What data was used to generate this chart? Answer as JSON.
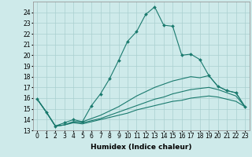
{
  "xlabel": "Humidex (Indice chaleur)",
  "background_color": "#ceeaea",
  "grid_color": "#aacfcf",
  "line_color": "#1a7a6e",
  "xlim": [
    -0.5,
    23.5
  ],
  "ylim": [
    13,
    25
  ],
  "yticks": [
    13,
    14,
    15,
    16,
    17,
    18,
    19,
    20,
    21,
    22,
    23,
    24
  ],
  "xticks": [
    0,
    1,
    2,
    3,
    4,
    5,
    6,
    7,
    8,
    9,
    10,
    11,
    12,
    13,
    14,
    15,
    16,
    17,
    18,
    19,
    20,
    21,
    22,
    23
  ],
  "line1_x": [
    0,
    1,
    2,
    3,
    4,
    5,
    6,
    7,
    8,
    9,
    10,
    11,
    12,
    13,
    14,
    15,
    16,
    17,
    18,
    19,
    20,
    21,
    22,
    23
  ],
  "line1_y": [
    15.9,
    14.7,
    13.4,
    13.7,
    14.0,
    13.8,
    15.3,
    16.4,
    17.8,
    19.5,
    21.3,
    22.2,
    23.8,
    24.5,
    22.8,
    22.7,
    20.0,
    20.1,
    19.6,
    18.1,
    17.1,
    16.7,
    16.5,
    15.2
  ],
  "line2_x": [
    0,
    1,
    2,
    3,
    4,
    5,
    6,
    7,
    8,
    9,
    10,
    11,
    12,
    13,
    14,
    15,
    16,
    17,
    18,
    19,
    20,
    21,
    22,
    23
  ],
  "line2_y": [
    15.9,
    14.7,
    13.4,
    13.5,
    13.8,
    13.8,
    14.1,
    14.4,
    14.8,
    15.2,
    15.7,
    16.2,
    16.6,
    17.0,
    17.3,
    17.6,
    17.8,
    18.0,
    17.9,
    18.1,
    17.1,
    16.7,
    16.5,
    15.2
  ],
  "line3_x": [
    0,
    1,
    2,
    3,
    4,
    5,
    6,
    7,
    8,
    9,
    10,
    11,
    12,
    13,
    14,
    15,
    16,
    17,
    18,
    19,
    20,
    21,
    22,
    23
  ],
  "line3_y": [
    15.9,
    14.7,
    13.4,
    13.5,
    13.8,
    13.7,
    13.9,
    14.1,
    14.4,
    14.7,
    15.0,
    15.3,
    15.6,
    15.9,
    16.1,
    16.4,
    16.6,
    16.8,
    16.9,
    17.0,
    16.8,
    16.5,
    16.2,
    15.2
  ],
  "line4_x": [
    0,
    1,
    2,
    3,
    4,
    5,
    6,
    7,
    8,
    9,
    10,
    11,
    12,
    13,
    14,
    15,
    16,
    17,
    18,
    19,
    20,
    21,
    22,
    23
  ],
  "line4_y": [
    15.9,
    14.7,
    13.4,
    13.5,
    13.7,
    13.6,
    13.8,
    14.0,
    14.2,
    14.4,
    14.6,
    14.9,
    15.1,
    15.3,
    15.5,
    15.7,
    15.8,
    16.0,
    16.1,
    16.2,
    16.1,
    15.9,
    15.7,
    15.2
  ],
  "tick_fontsize": 5.5,
  "xlabel_fontsize": 6.5
}
